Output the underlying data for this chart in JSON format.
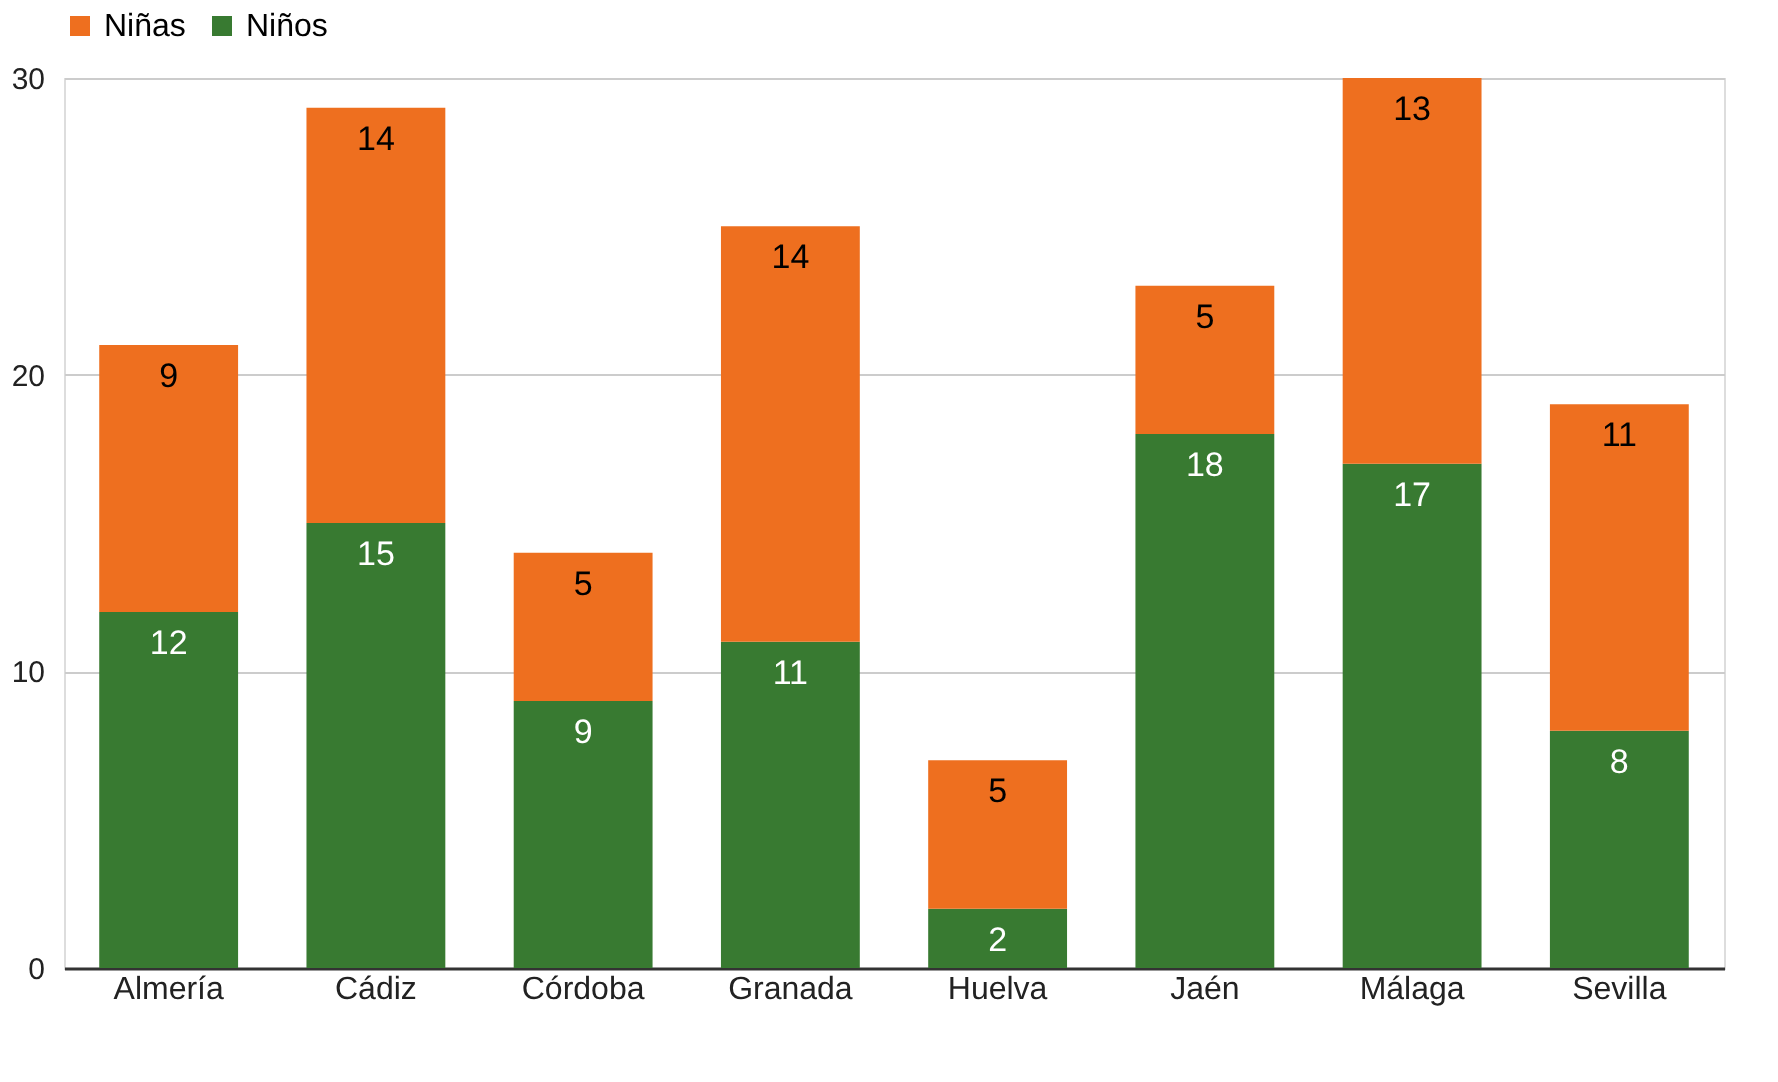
{
  "chart_data": {
    "type": "bar",
    "stacked": true,
    "categories": [
      "Almería",
      "Cádiz",
      "Córdoba",
      "Granada",
      "Huelva",
      "Jaén",
      "Málaga",
      "Sevilla"
    ],
    "series": [
      {
        "name": "Niños",
        "color": "#387a31",
        "values": [
          12,
          15,
          9,
          11,
          2,
          18,
          17,
          8
        ]
      },
      {
        "name": "Niñas",
        "color": "#ee6f1f",
        "values": [
          9,
          14,
          5,
          14,
          5,
          5,
          13,
          11
        ]
      }
    ],
    "ylim": [
      0,
      30
    ],
    "yticks": [
      0,
      10,
      20,
      30
    ],
    "grid": "y",
    "legend": "top",
    "data_labels": true
  }
}
